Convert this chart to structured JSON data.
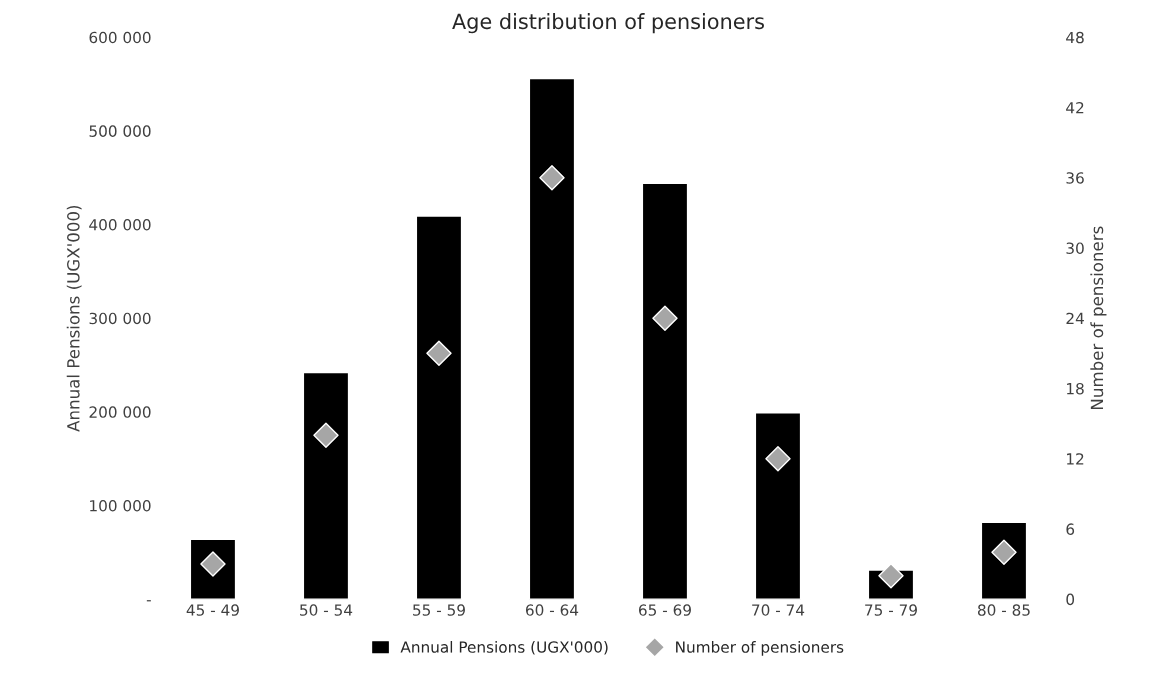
{
  "chart_data": {
    "type": "bar",
    "title": "Age distribution of pensioners",
    "ylabel": "Annual Pensions (UGX'000)",
    "y2label": "Number of pensioners",
    "categories": [
      "45 - 49",
      "50 - 54",
      "55 - 59",
      "60 - 64",
      "65 - 69",
      "70 - 74",
      "75 - 79",
      "80 - 85"
    ],
    "series": [
      {
        "name": "Annual Pensions (UGX'000)",
        "color": "#000000",
        "values": [
          64000,
          242000,
          409000,
          556000,
          444000,
          199000,
          31000,
          82000
        ]
      },
      {
        "name": "Number of pensioners",
        "color": "#a6a6a6",
        "type": "scatter",
        "axis": "y2",
        "marker": "diamond",
        "values": [
          3,
          14,
          21,
          36,
          24,
          12,
          2,
          4
        ]
      }
    ],
    "ylim": [
      0,
      600000
    ],
    "yticks": [
      {
        "value": 0,
        "label": "-"
      },
      {
        "value": 100000,
        "label": "100 000"
      },
      {
        "value": 200000,
        "label": "200 000"
      },
      {
        "value": 300000,
        "label": "300 000"
      },
      {
        "value": 400000,
        "label": "400 000"
      },
      {
        "value": 500000,
        "label": "500 000"
      },
      {
        "value": 600000,
        "label": "600 000"
      }
    ],
    "y2lim": [
      0,
      48
    ],
    "y2ticks": [
      0,
      6,
      12,
      18,
      24,
      30,
      36,
      42,
      48
    ],
    "grid": false,
    "legend": "bottom"
  }
}
